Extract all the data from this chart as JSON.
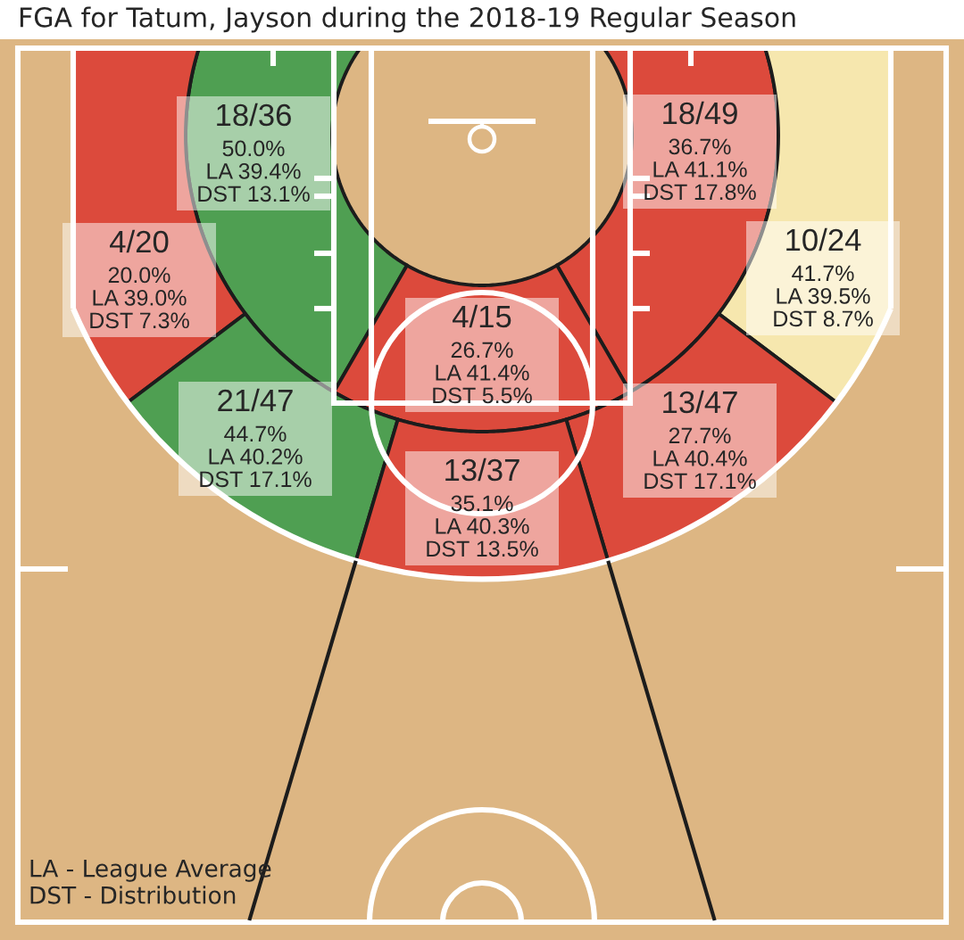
{
  "chart_data": {
    "type": "other",
    "title": "FGA for Tatum, Jayson during the 2018-19 Regular Season",
    "categories": [
      null,
      null,
      null,
      null,
      null,
      null,
      null,
      null
    ],
    "values": [
      50.0,
      36.7,
      20.0,
      41.7,
      26.7,
      44.7,
      27.7,
      35.1
    ],
    "value_labels": [
      "18/36\n50.0%\nLA 39.4%\nDST 13.1%",
      "18/49\n36.7%\nLA 41.1%\nDST 17.8%",
      "4/20\n20.0%\nLA 39.0%\nDST 7.3%",
      "10/24\n41.7%\nLA 39.5%\nDST 8.7%",
      "4/15\n26.7%\nLA 41.4%\nDST 5.5%",
      "21/47\n44.7%\nLA 40.2%\nDST 17.1%",
      "13/47\n27.7%\nLA 40.4%\nDST 17.1%",
      "13/37\n35.1%\nLA 40.3%\nDST 13.5%"
    ],
    "colors": [
      "#4f9f52",
      "#dc4a3c",
      "#dc4a3c",
      "#f6e7ae",
      "#dc4a3c",
      "#4f9f52",
      "#dc4a3c",
      "#dc4a3c"
    ],
    "annotations": [
      "LA - League Average",
      "DST - Distribution"
    ]
  }
}
